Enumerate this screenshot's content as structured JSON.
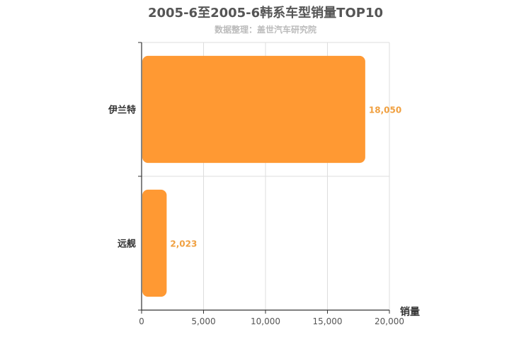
{
  "title": "2005-6至2005-6韩系车型销量TOP10",
  "subtitle": "数据整理：盖世汽车研究院",
  "colors": {
    "bar": "#ff9933",
    "label": "#f0a040",
    "grid": "#dddddd",
    "axis": "#333333"
  },
  "chart_data": {
    "type": "bar",
    "orientation": "horizontal",
    "categories": [
      "伊兰特",
      "远舰"
    ],
    "values": [
      18050,
      2023
    ],
    "data_labels": [
      "18,050",
      "2,023"
    ],
    "xlabel": "销量",
    "xlim": [
      0,
      20000
    ],
    "x_ticks": [
      0,
      5000,
      10000,
      15000,
      20000
    ],
    "x_tick_labels": [
      "0",
      "5,000",
      "10,000",
      "15,000",
      "20,000"
    ],
    "grid": true
  }
}
